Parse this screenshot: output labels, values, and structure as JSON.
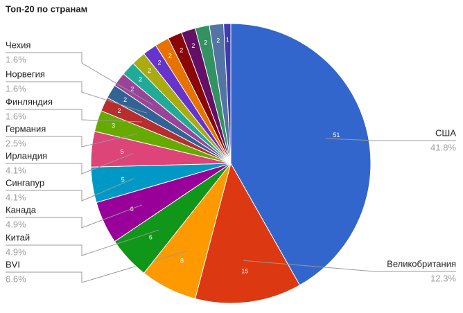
{
  "chart_data": {
    "type": "pie",
    "title": "Топ-20 по странам",
    "categories": [
      "США",
      "Великобритания",
      "BVI",
      "Китай",
      "Канада",
      "Сингапур",
      "Ирландия",
      "Германия",
      "Финляндия",
      "Норвегия",
      "Чехия",
      null,
      null,
      null,
      null,
      null,
      null,
      null,
      null,
      null
    ],
    "values": [
      51,
      15,
      8,
      6,
      6,
      5,
      5,
      3,
      2,
      2,
      2,
      2,
      2,
      2,
      2,
      2,
      2,
      2,
      2,
      1
    ],
    "percent_labels": [
      "41.8%",
      "12.3%",
      "6.6%",
      "4.9%",
      "4.9%",
      "4.1%",
      "4.1%",
      "2.5%",
      "1.6%",
      "1.6%",
      "1.6%",
      null,
      null,
      null,
      null,
      null,
      null,
      null,
      null,
      null
    ],
    "colors": [
      "#3366cc",
      "#dc3912",
      "#ff9900",
      "#109618",
      "#990099",
      "#0099c6",
      "#dd4477",
      "#66aa00",
      "#b82e2e",
      "#316395",
      "#994499",
      "#22aa99",
      "#aaaa11",
      "#6633cc",
      "#e67300",
      "#8b0707",
      "#651067",
      "#329262",
      "#5574a6",
      "#3b3eac"
    ]
  }
}
